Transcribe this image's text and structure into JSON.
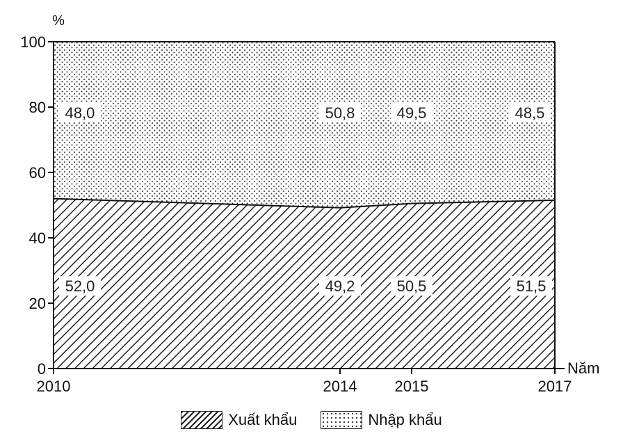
{
  "chart_data": {
    "type": "area",
    "stacked": true,
    "unit_label": "%",
    "x_axis_label": "Năm",
    "x": [
      2010,
      2014,
      2015,
      2017
    ],
    "ylim": [
      0,
      100
    ],
    "y_ticks": [
      "0",
      "20",
      "40",
      "60",
      "80",
      "100"
    ],
    "series": [
      {
        "name": "Xuất khẩu",
        "values": [
          52.0,
          49.2,
          50.5,
          51.5
        ],
        "value_labels": [
          "52,0",
          "49,2",
          "50,5",
          "51,5"
        ],
        "pattern": "diagonal-hatch"
      },
      {
        "name": "Nhập khẩu",
        "values": [
          48.0,
          50.8,
          49.5,
          48.5
        ],
        "value_labels": [
          "48,0",
          "50,8",
          "49,5",
          "48,5"
        ],
        "pattern": "dots"
      }
    ],
    "legend_placement": "bottom",
    "grid": false
  }
}
